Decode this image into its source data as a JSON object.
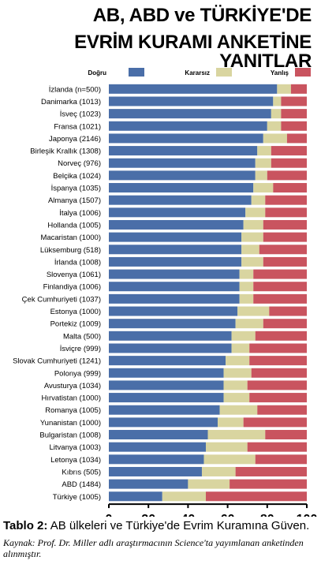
{
  "header": {
    "title_line1": "AB, ABD ve TÜRKİYE'DE",
    "title_line2": "EVRİM KURAMI ANKETİNE YANITLAR"
  },
  "caption": {
    "label": "Tablo 2:",
    "text": " AB ülkeleri ve Türkiye'de Evrim Kuramına Güven."
  },
  "source": {
    "text": "Kaynak: Prof. Dr. Miller adlı araştırmacının Science'ta yayımlanan anketinden alınmıştır."
  },
  "chart_data": {
    "type": "bar",
    "orientation": "horizontal",
    "stacked": true,
    "categories": [
      "İzlanda (n=500)",
      "Danimarka (1013)",
      "İsveç (1023)",
      "Fransa (1021)",
      "Japonya (2146)",
      "Birleşik Krallık (1308)",
      "Norveç (976)",
      "Belçika (1024)",
      "İspanya (1035)",
      "Almanya (1507)",
      "İtalya (1006)",
      "Hollanda (1005)",
      "Macaristan (1000)",
      "Lüksemburg (518)",
      "İrlanda (1008)",
      "Slovenya (1061)",
      "Finlandiya (1006)",
      "Çek Cumhuriyeti (1037)",
      "Estonya (1000)",
      "Portekiz (1009)",
      "Malta (500)",
      "İsviçre (999)",
      "Slovak Cumhuriyeti (1241)",
      "Polonya (999)",
      "Avusturya (1034)",
      "Hırvatistan (1000)",
      "Romanya (1005)",
      "Yunanistan (1000)",
      "Bulgaristan (1008)",
      "Litvanya (1003)",
      "Letonya (1034)",
      "Kıbrıs (505)",
      "ABD (1484)",
      "Türkiye (1005)"
    ],
    "series": [
      {
        "name": "Doğru",
        "color": "#4a6ea8",
        "values": [
          85,
          83,
          82,
          80,
          78,
          75,
          74,
          74,
          73,
          72,
          69,
          68,
          67,
          67,
          67,
          66,
          66,
          66,
          65,
          64,
          62,
          62,
          59,
          58,
          58,
          58,
          56,
          55,
          50,
          49,
          48,
          47,
          40,
          27
        ]
      },
      {
        "name": "Kararsız",
        "color": "#d9d5a0",
        "values": [
          7,
          4,
          5,
          7,
          12,
          7,
          8,
          6,
          10,
          7,
          10,
          10,
          11,
          9,
          11,
          7,
          7,
          7,
          16,
          14,
          12,
          9,
          12,
          14,
          12,
          13,
          19,
          13,
          29,
          21,
          26,
          17,
          21,
          22
        ]
      },
      {
        "name": "Yanlış",
        "color": "#c9545f",
        "values": [
          8,
          13,
          13,
          13,
          10,
          18,
          18,
          20,
          17,
          21,
          21,
          22,
          22,
          24,
          22,
          27,
          27,
          27,
          19,
          22,
          26,
          29,
          29,
          28,
          30,
          29,
          25,
          32,
          21,
          30,
          26,
          36,
          39,
          51
        ]
      }
    ],
    "xlim": [
      0,
      100
    ],
    "xticks": [
      "0",
      "20",
      "40",
      "60",
      "80",
      "100"
    ],
    "legend": "top",
    "grid": false
  }
}
